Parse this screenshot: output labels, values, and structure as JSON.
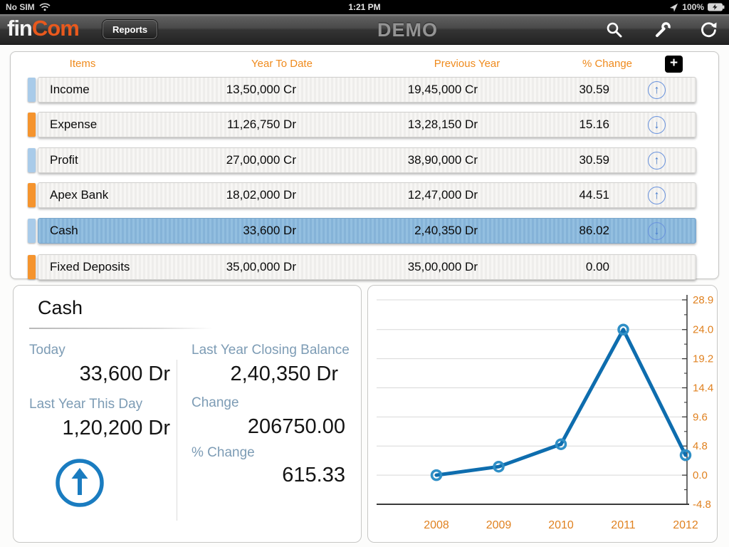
{
  "status_bar": {
    "carrier": "No SIM",
    "time": "1:21 PM",
    "battery": "100%"
  },
  "header": {
    "logo_fin": "fin",
    "logo_com": "Com",
    "reports_button": "Reports",
    "title": "DEMO"
  },
  "icons": {
    "up": "↑",
    "down": "↓"
  },
  "table": {
    "columns": {
      "items": "Items",
      "ytd": "Year To Date",
      "prev": "Previous Year",
      "pct": "% Change"
    },
    "add_button": "+",
    "rows": [
      {
        "name": "Income",
        "ytd": "13,50,000 Cr",
        "prev": "19,45,000 Cr",
        "pct": "30.59",
        "trend": "up",
        "tab": "blue",
        "selected": false
      },
      {
        "name": "Expense",
        "ytd": "11,26,750 Dr",
        "prev": "13,28,150 Dr",
        "pct": "15.16",
        "trend": "down",
        "tab": "orange",
        "selected": false
      },
      {
        "name": "Profit",
        "ytd": "27,00,000 Cr",
        "prev": "38,90,000 Cr",
        "pct": "30.59",
        "trend": "up",
        "tab": "blue",
        "selected": false
      },
      {
        "name": "Apex Bank",
        "ytd": "18,02,000 Dr",
        "prev": "12,47,000 Dr",
        "pct": "44.51",
        "trend": "up",
        "tab": "orange",
        "selected": false
      },
      {
        "name": "Cash",
        "ytd": "33,600 Dr",
        "prev": "2,40,350 Dr",
        "pct": "86.02",
        "trend": "down",
        "tab": "blue",
        "selected": true
      },
      {
        "name": "Fixed Deposits",
        "ytd": "35,00,000 Dr",
        "prev": "35,00,000 Dr",
        "pct": "0.00",
        "trend": "none",
        "tab": "orange",
        "selected": false
      }
    ]
  },
  "detail": {
    "title": "Cash",
    "today_label": "Today",
    "today_value": "33,600 Dr",
    "last_year_day_label": "Last Year This Day",
    "last_year_day_value": "1,20,200 Dr",
    "closing_label": "Last Year Closing Balance",
    "closing_value": "2,40,350 Dr",
    "change_label": "Change",
    "change_value": "206750.00",
    "pct_change_label": "% Change",
    "pct_change_value": "615.33",
    "trend": "up"
  },
  "chart_data": {
    "type": "line",
    "x": [
      "2008",
      "2009",
      "2010",
      "2011",
      "2012"
    ],
    "values": [
      0.0,
      1.4,
      5.1,
      24.0,
      3.3
    ],
    "yticks": [
      "-4.8",
      "0.0",
      "4.8",
      "9.6",
      "14.4",
      "19.2",
      "24.0",
      "28.9"
    ],
    "ylim": [
      -4.8,
      28.9
    ],
    "grid": true,
    "legend_position": "none",
    "line_color": "#0e6dae",
    "marker_color": "#2f8fc6",
    "axis_label_color": "#e0811f",
    "grid_color": "#d8d8d8"
  },
  "colors": {
    "accent_orange": "#ef8a1c",
    "selection_blue": "#85b3d8",
    "tab_blue": "#a9cbe9",
    "tab_orange": "#f5942e",
    "trend_arrow_blue": "#4a7fd0",
    "label_slate": "#7d9cb5",
    "logo_orange": "#e9591d"
  }
}
